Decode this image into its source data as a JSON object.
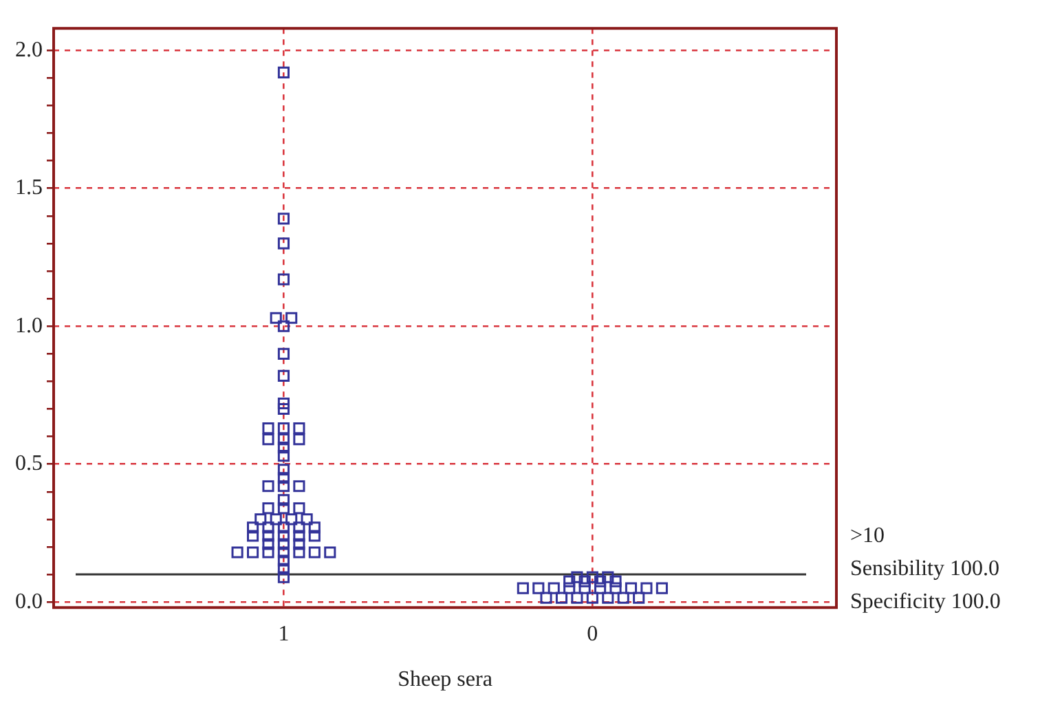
{
  "chart_data": {
    "type": "scatter",
    "xlabel": "Sheep sera",
    "categories": [
      "1",
      "0"
    ],
    "series": [
      {
        "color": "#333399",
        "x": [
          "1",
          "1",
          "1",
          "1",
          "1",
          "1",
          "1",
          "1",
          "1",
          "1",
          "1",
          "1",
          "1",
          "1",
          "1",
          "1",
          "1",
          "1",
          "1",
          "1",
          "1",
          "1",
          "1",
          "1",
          "1",
          "1",
          "1",
          "1",
          "1",
          "1",
          "1",
          "1",
          "1",
          "1",
          "1",
          "1",
          "1",
          "1",
          "1",
          "1",
          "1",
          "1",
          "1",
          "1",
          "1",
          "1",
          "1",
          "1",
          "1",
          "1",
          "1",
          "1",
          "1",
          "1",
          "1"
        ],
        "values": [
          1.92,
          1.39,
          1.3,
          1.17,
          1.03,
          1.03,
          1.0,
          0.9,
          0.82,
          0.72,
          0.7,
          0.63,
          0.63,
          0.63,
          0.59,
          0.59,
          0.59,
          0.56,
          0.53,
          0.48,
          0.45,
          0.42,
          0.42,
          0.42,
          0.37,
          0.34,
          0.34,
          0.34,
          0.3,
          0.3,
          0.3,
          0.3,
          0.27,
          0.27,
          0.27,
          0.27,
          0.27,
          0.24,
          0.24,
          0.24,
          0.24,
          0.24,
          0.21,
          0.21,
          0.21,
          0.18,
          0.18,
          0.18,
          0.18,
          0.18,
          0.18,
          0.18,
          0.15,
          0.12,
          0.09
        ]
      },
      {
        "color": "#333399",
        "x": [
          "0",
          "0",
          "0",
          "0",
          "0",
          "0",
          "0",
          "0",
          "0",
          "0",
          "0",
          "0",
          "0",
          "0",
          "0",
          "0",
          "0",
          "0",
          "0",
          "0",
          "0",
          "0",
          "0",
          "0"
        ],
        "values": [
          0.09,
          0.09,
          0.09,
          0.075,
          0.075,
          0.075,
          0.075,
          0.05,
          0.05,
          0.05,
          0.05,
          0.05,
          0.05,
          0.05,
          0.05,
          0.05,
          0.05,
          0.015,
          0.015,
          0.015,
          0.015,
          0.015,
          0.015,
          0.015
        ]
      }
    ],
    "ylim": [
      -0.02,
      2.08
    ],
    "yticks": [
      {
        "value": 0,
        "label": "0.0"
      },
      {
        "value": 0.1,
        "label": null
      },
      {
        "value": 0.2,
        "label": null
      },
      {
        "value": 0.3,
        "label": null
      },
      {
        "value": 0.4,
        "label": null
      },
      0.5,
      {
        "value": 0.6,
        "label": null
      },
      {
        "value": 0.7,
        "label": null
      },
      {
        "value": 0.8,
        "label": null
      },
      {
        "value": 0.9,
        "label": null
      },
      {
        "value": 1,
        "label": "1.0"
      },
      {
        "value": 1.1,
        "label": null
      },
      {
        "value": 1.2,
        "label": null
      },
      {
        "value": 1.3,
        "label": null
      },
      {
        "value": 1.4,
        "label": null
      },
      1.5,
      {
        "value": 1.6,
        "label": null
      },
      {
        "value": 1.7,
        "label": null
      },
      {
        "value": 1.8,
        "label": null
      },
      {
        "value": 1.9,
        "label": null
      },
      {
        "value": 2,
        "label": "2.0"
      }
    ],
    "grid": true,
    "legend": false,
    "marker": "square",
    "ref_lines": [
      {
        "axis": "y",
        "value": 0.1,
        "color": "#333333",
        "line_style": "solid"
      }
    ],
    "annotations": [
      ">10",
      "Sensibility 100.0",
      "Specificity 100.0"
    ]
  }
}
